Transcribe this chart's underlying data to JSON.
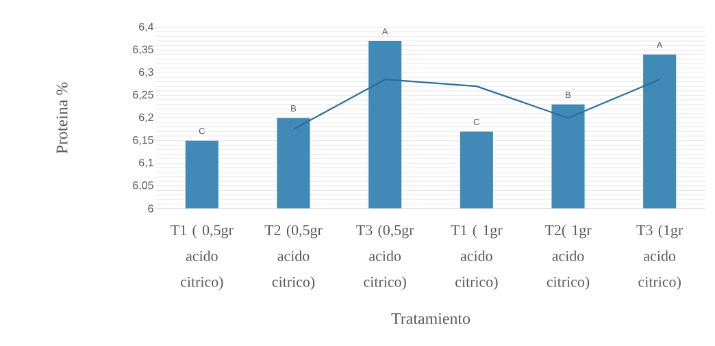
{
  "chart_data": {
    "type": "bar",
    "xlabel": "Tratamiento",
    "ylabel": "Proteina %",
    "categories": [
      "T1 ( 0,5gr acido citrico)",
      "T2 (0,5gr acido citrico)",
      "T3 (0,5gr acido citrico)",
      "T1 ( 1gr acido citrico)",
      "T2( 1gr acido citrico)",
      "T3 (1gr acido citrico)"
    ],
    "series": [
      {
        "color": "#4189b6",
        "values": [
          6.15,
          6.2,
          6.37,
          6.17,
          6.23,
          6.34
        ]
      },
      {
        "type": "line",
        "color": "#2b6e9c",
        "values": [
          null,
          6.175,
          6.285,
          6.27,
          6.2,
          6.285
        ]
      }
    ],
    "ylim": [
      6,
      6.4
    ],
    "yticks": [
      6,
      {
        "value": 6.01,
        "label": null
      },
      {
        "value": 6.02,
        "label": null
      },
      {
        "value": 6.03,
        "label": null
      },
      {
        "value": 6.04,
        "label": null
      },
      {
        "value": 6.05,
        "label": "6,05"
      },
      {
        "value": 6.06,
        "label": null
      },
      {
        "value": 6.07,
        "label": null
      },
      {
        "value": 6.08,
        "label": null
      },
      {
        "value": 6.09,
        "label": null
      },
      {
        "value": 6.1,
        "label": "6,1"
      },
      {
        "value": 6.11,
        "label": null
      },
      {
        "value": 6.12,
        "label": null
      },
      {
        "value": 6.13,
        "label": null
      },
      {
        "value": 6.14,
        "label": null
      },
      {
        "value": 6.15,
        "label": "6,15"
      },
      {
        "value": 6.16,
        "label": null
      },
      {
        "value": 6.17,
        "label": null
      },
      {
        "value": 6.18,
        "label": null
      },
      {
        "value": 6.19,
        "label": null
      },
      {
        "value": 6.2,
        "label": "6,2"
      },
      {
        "value": 6.21,
        "label": null
      },
      {
        "value": 6.22,
        "label": null
      },
      {
        "value": 6.23,
        "label": null
      },
      {
        "value": 6.24,
        "label": null
      },
      {
        "value": 6.25,
        "label": "6,25"
      },
      {
        "value": 6.26,
        "label": null
      },
      {
        "value": 6.27,
        "label": null
      },
      {
        "value": 6.28,
        "label": null
      },
      {
        "value": 6.29,
        "label": null
      },
      {
        "value": 6.3,
        "label": "6,3"
      },
      {
        "value": 6.31,
        "label": null
      },
      {
        "value": 6.32,
        "label": null
      },
      {
        "value": 6.33,
        "label": null
      },
      {
        "value": 6.34,
        "label": null
      },
      {
        "value": 6.35,
        "label": "6,35"
      },
      {
        "value": 6.36,
        "label": null
      },
      {
        "value": 6.37,
        "label": null
      },
      {
        "value": 6.38,
        "label": null
      },
      {
        "value": 6.39,
        "label": null
      },
      {
        "value": 6.4,
        "label": "6,4"
      }
    ],
    "grid": "y",
    "annotations": [
      {
        "text": "C",
        "x": "T1 ( 0,5gr acido citrico)",
        "y": 6.15
      },
      {
        "text": "B",
        "x": "T2 (0,5gr acido citrico)",
        "y": 6.2
      },
      {
        "text": "A",
        "x": "T3 (0,5gr acido citrico)",
        "y": 6.37
      },
      {
        "text": "C",
        "x": "T1 ( 1gr acido citrico)",
        "y": 6.17
      },
      {
        "text": "B",
        "x": "T2( 1gr acido citrico)",
        "y": 6.23
      },
      {
        "text": "A",
        "x": "T3 (1gr acido citrico)",
        "y": 6.34
      }
    ]
  }
}
